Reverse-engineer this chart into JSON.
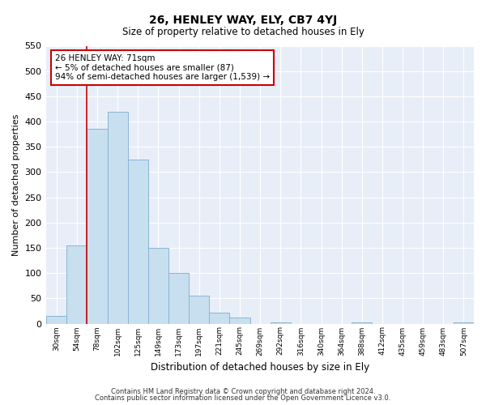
{
  "title": "26, HENLEY WAY, ELY, CB7 4YJ",
  "subtitle": "Size of property relative to detached houses in Ely",
  "xlabel": "Distribution of detached houses by size in Ely",
  "ylabel": "Number of detached properties",
  "bin_labels": [
    "30sqm",
    "54sqm",
    "78sqm",
    "102sqm",
    "125sqm",
    "149sqm",
    "173sqm",
    "197sqm",
    "221sqm",
    "245sqm",
    "269sqm",
    "292sqm",
    "316sqm",
    "340sqm",
    "364sqm",
    "388sqm",
    "412sqm",
    "435sqm",
    "459sqm",
    "483sqm",
    "507sqm"
  ],
  "bar_heights": [
    15,
    155,
    385,
    420,
    325,
    150,
    100,
    55,
    22,
    12,
    0,
    2,
    0,
    0,
    0,
    2,
    0,
    0,
    0,
    0,
    2
  ],
  "bar_color": "#c8dff0",
  "bar_edge_color": "#8ab4d4",
  "vline_x_idx": 1.5,
  "vline_color": "#cc0000",
  "annotation_line1": "26 HENLEY WAY: 71sqm",
  "annotation_line2": "← 5% of detached houses are smaller (87)",
  "annotation_line3": "94% of semi-detached houses are larger (1,539) →",
  "annotation_box_color": "white",
  "annotation_box_edge": "#cc0000",
  "ylim": [
    0,
    550
  ],
  "yticks": [
    0,
    50,
    100,
    150,
    200,
    250,
    300,
    350,
    400,
    450,
    500,
    550
  ],
  "footer_line1": "Contains HM Land Registry data © Crown copyright and database right 2024.",
  "footer_line2": "Contains public sector information licensed under the Open Government Licence v3.0.",
  "background_color": "#e8eef8",
  "grid_color": "#ffffff",
  "figsize": [
    6.0,
    5.0
  ],
  "dpi": 100
}
